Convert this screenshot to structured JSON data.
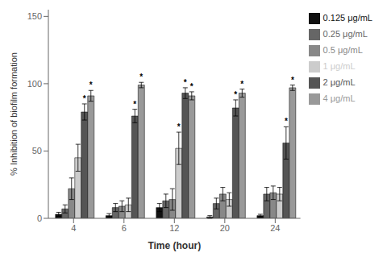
{
  "chart_data": {
    "type": "bar",
    "xlabel": "Time (hour)",
    "ylabel": "% Inhibition of biofilm formation",
    "categories": [
      "4",
      "6",
      "12",
      "20",
      "24"
    ],
    "series": [
      {
        "name": "0.125 μg/mL",
        "color": "#111111",
        "values": [
          3,
          2,
          8,
          1,
          2
        ],
        "errors": [
          1.5,
          1.5,
          3,
          1,
          1
        ]
      },
      {
        "name": "0.25 μg/mL",
        "color": "#666666",
        "values": [
          7,
          8,
          13,
          11,
          18
        ],
        "errors": [
          3,
          3,
          5,
          4,
          5
        ]
      },
      {
        "name": "0.5 μg/mL",
        "color": "#888888",
        "values": [
          22,
          9,
          14,
          18,
          19
        ],
        "errors": [
          8,
          4,
          8,
          5,
          5
        ]
      },
      {
        "name": "1 μg/mL",
        "color": "#cccccc",
        "values": [
          45,
          10,
          52,
          14,
          18
        ],
        "errors": [
          10,
          5,
          12,
          5,
          5
        ],
        "annotations": [
          null,
          null,
          "*",
          null,
          null
        ]
      },
      {
        "name": "2 μg/mL",
        "color": "#555555",
        "values": [
          79,
          76,
          93,
          82,
          56
        ],
        "errors": [
          6,
          5,
          4,
          6,
          12
        ],
        "annotations": [
          "*",
          "*",
          "*",
          "*",
          "*"
        ]
      },
      {
        "name": "4 μg/mL",
        "color": "#999999",
        "values": [
          91,
          99,
          91,
          93,
          97
        ],
        "errors": [
          4,
          2,
          3,
          3,
          2
        ],
        "annotations": [
          "*",
          "*",
          "*",
          "*",
          "*"
        ]
      }
    ],
    "ylim": [
      0,
      155
    ],
    "yticks": [
      0,
      50,
      100,
      150
    ],
    "grid": false,
    "legend": "right"
  }
}
